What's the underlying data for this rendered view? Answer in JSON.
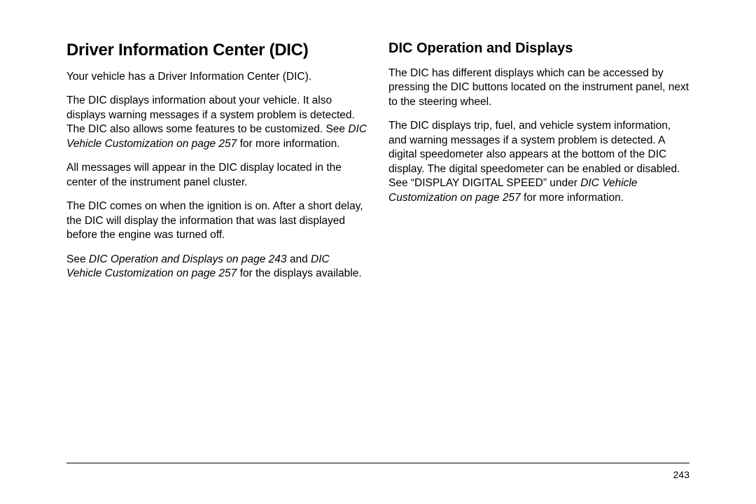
{
  "left": {
    "heading": "Driver Information Center (DIC)",
    "p1": "Your vehicle has a Driver Information Center (DIC).",
    "p2_a": "The DIC displays information about your vehicle. It also displays warning messages if a system problem is detected. The DIC also allows some features to be customized. See ",
    "p2_i": "DIC Vehicle Customization on page 257",
    "p2_b": " for more information.",
    "p3": "All messages will appear in the DIC display located in the center of the instrument panel cluster.",
    "p4": "The DIC comes on when the ignition is on. After a short delay, the DIC will display the information that was last displayed before the engine was turned off.",
    "p5_a": "See ",
    "p5_i1": "DIC Operation and Displays on page 243",
    "p5_b": " and ",
    "p5_i2": "DIC Vehicle Customization on page 257",
    "p5_c": " for the displays available."
  },
  "right": {
    "heading": "DIC Operation and Displays",
    "p1": "The DIC has different displays which can be accessed by pressing the DIC buttons located on the instrument panel, next to the steering wheel.",
    "p2_a": "The DIC displays trip, fuel, and vehicle system information, and warning messages if a system problem is detected. A digital speedometer also appears at the bottom of the DIC display. The digital speedometer can be enabled or disabled. See “DISPLAY DIGITAL SPEED” under ",
    "p2_i": "DIC Vehicle Customization on page 257",
    "p2_b": " for more information."
  },
  "page_number": "243"
}
